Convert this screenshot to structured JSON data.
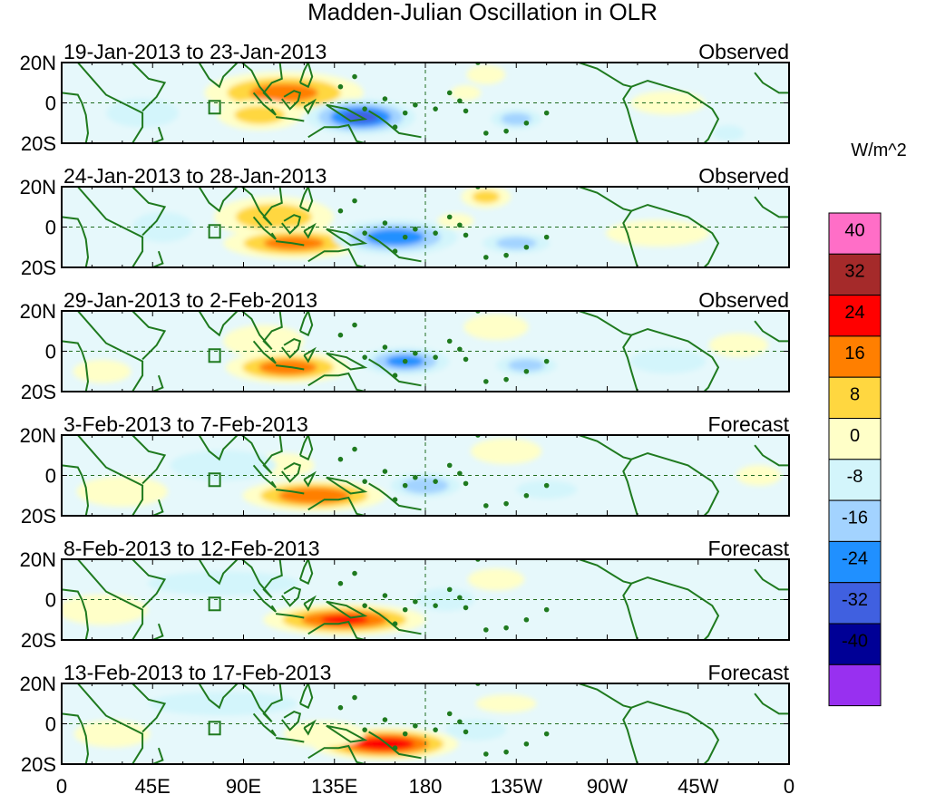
{
  "chart_data": {
    "type": "heatmap",
    "title": "Madden-Julian Oscillation in OLR",
    "units": "W/m^2",
    "x_ticks": [
      "0",
      "45E",
      "90E",
      "135E",
      "180",
      "135W",
      "90W",
      "45W",
      "0"
    ],
    "x_tick_lon": [
      0,
      45,
      90,
      135,
      180,
      225,
      270,
      315,
      360
    ],
    "y_ticks": [
      "20N",
      "0",
      "20S"
    ],
    "y_tick_lat": [
      20,
      0,
      -20
    ],
    "xlim": [
      0,
      360
    ],
    "ylim": [
      -20,
      20
    ],
    "colorbar": {
      "labels": [
        "40",
        "32",
        "24",
        "16",
        "8",
        "0",
        "-8",
        "-16",
        "-24",
        "-32",
        "-40"
      ],
      "levels": [
        40,
        32,
        24,
        16,
        8,
        0,
        -8,
        -16,
        -24,
        -32,
        -40
      ],
      "colors": [
        "#ff6ec7",
        "#a52a2a",
        "#ff0000",
        "#ff7f00",
        "#ffd740",
        "#ffffc8",
        "#d3f5fb",
        "#a3d3ff",
        "#2090ff",
        "#4060e0",
        "#000096",
        "#9830f0"
      ]
    },
    "panels": [
      {
        "period": "19-Jan-2013 to 23-Jan-2013",
        "status": "Observed",
        "anomalies": [
          {
            "lon": 110,
            "lat": 5,
            "rx": 45,
            "ry": 12,
            "v": 26
          },
          {
            "lon": 98,
            "lat": -6,
            "rx": 25,
            "ry": 9,
            "v": 18
          },
          {
            "lon": 148,
            "lat": -7,
            "rx": 30,
            "ry": 10,
            "v": -34
          },
          {
            "lon": 210,
            "lat": 14,
            "rx": 12,
            "ry": 6,
            "v": 14
          },
          {
            "lon": 200,
            "lat": 5,
            "rx": 10,
            "ry": 5,
            "v": 10
          },
          {
            "lon": 225,
            "lat": -8,
            "rx": 15,
            "ry": 6,
            "v": -18
          },
          {
            "lon": 300,
            "lat": 0,
            "rx": 25,
            "ry": 8,
            "v": 9
          },
          {
            "lon": 330,
            "lat": -15,
            "rx": 10,
            "ry": 5,
            "v": -12
          },
          {
            "lon": 40,
            "lat": -5,
            "rx": 25,
            "ry": 10,
            "v": -8
          }
        ]
      },
      {
        "period": "24-Jan-2013 to 28-Jan-2013",
        "status": "Observed",
        "anomalies": [
          {
            "lon": 105,
            "lat": 5,
            "rx": 35,
            "ry": 12,
            "v": 20
          },
          {
            "lon": 115,
            "lat": -8,
            "rx": 40,
            "ry": 9,
            "v": 26
          },
          {
            "lon": 165,
            "lat": -5,
            "rx": 35,
            "ry": 10,
            "v": -28
          },
          {
            "lon": 210,
            "lat": 15,
            "rx": 15,
            "ry": 7,
            "v": 16
          },
          {
            "lon": 195,
            "lat": 3,
            "rx": 12,
            "ry": 5,
            "v": 10
          },
          {
            "lon": 225,
            "lat": -8,
            "rx": 20,
            "ry": 6,
            "v": -18
          },
          {
            "lon": 295,
            "lat": -3,
            "rx": 35,
            "ry": 9,
            "v": 9
          },
          {
            "lon": 50,
            "lat": 0,
            "rx": 20,
            "ry": 10,
            "v": -10
          }
        ]
      },
      {
        "period": "29-Jan-2013 to 2-Feb-2013",
        "status": "Observed",
        "anomalies": [
          {
            "lon": 112,
            "lat": -8,
            "rx": 35,
            "ry": 9,
            "v": 28
          },
          {
            "lon": 100,
            "lat": 5,
            "rx": 25,
            "ry": 10,
            "v": 14
          },
          {
            "lon": 170,
            "lat": -5,
            "rx": 25,
            "ry": 8,
            "v": -26
          },
          {
            "lon": 230,
            "lat": -7,
            "rx": 18,
            "ry": 6,
            "v": -18
          },
          {
            "lon": 215,
            "lat": 12,
            "rx": 20,
            "ry": 8,
            "v": 14
          },
          {
            "lon": 300,
            "lat": -5,
            "rx": 25,
            "ry": 8,
            "v": -10
          },
          {
            "lon": 335,
            "lat": 3,
            "rx": 20,
            "ry": 8,
            "v": 9
          },
          {
            "lon": 20,
            "lat": -10,
            "rx": 20,
            "ry": 8,
            "v": 8
          }
        ]
      },
      {
        "period": "3-Feb-2013 to 7-Feb-2013",
        "status": "Forecast",
        "anomalies": [
          {
            "lon": 125,
            "lat": -10,
            "rx": 40,
            "ry": 9,
            "v": 30
          },
          {
            "lon": 110,
            "lat": 5,
            "rx": 20,
            "ry": 8,
            "v": 10
          },
          {
            "lon": 180,
            "lat": -5,
            "rx": 20,
            "ry": 7,
            "v": -22
          },
          {
            "lon": 220,
            "lat": 12,
            "rx": 22,
            "ry": 8,
            "v": 14
          },
          {
            "lon": 240,
            "lat": -7,
            "rx": 20,
            "ry": 6,
            "v": -10
          },
          {
            "lon": 30,
            "lat": -8,
            "rx": 30,
            "ry": 10,
            "v": 10
          },
          {
            "lon": 80,
            "lat": 5,
            "rx": 35,
            "ry": 10,
            "v": -10
          },
          {
            "lon": 345,
            "lat": 0,
            "rx": 15,
            "ry": 7,
            "v": 9
          }
        ]
      },
      {
        "period": "8-Feb-2013 to 12-Feb-2013",
        "status": "Forecast",
        "anomalies": [
          {
            "lon": 140,
            "lat": -10,
            "rx": 45,
            "ry": 9,
            "v": 32
          },
          {
            "lon": 215,
            "lat": 10,
            "rx": 18,
            "ry": 7,
            "v": 12
          },
          {
            "lon": 20,
            "lat": -5,
            "rx": 30,
            "ry": 10,
            "v": 10
          },
          {
            "lon": 80,
            "lat": 8,
            "rx": 50,
            "ry": 8,
            "v": -10
          },
          {
            "lon": 190,
            "lat": 0,
            "rx": 20,
            "ry": 8,
            "v": -8
          }
        ]
      },
      {
        "period": "13-Feb-2013 to 17-Feb-2013",
        "status": "Forecast",
        "anomalies": [
          {
            "lon": 160,
            "lat": -10,
            "rx": 40,
            "ry": 9,
            "v": 38
          },
          {
            "lon": 130,
            "lat": -5,
            "rx": 25,
            "ry": 8,
            "v": 14
          },
          {
            "lon": 220,
            "lat": 10,
            "rx": 20,
            "ry": 6,
            "v": 10
          },
          {
            "lon": 25,
            "lat": -5,
            "rx": 25,
            "ry": 9,
            "v": 10
          },
          {
            "lon": 80,
            "lat": 10,
            "rx": 50,
            "ry": 8,
            "v": -9
          },
          {
            "lon": 205,
            "lat": -3,
            "rx": 20,
            "ry": 7,
            "v": -10
          }
        ]
      }
    ]
  }
}
